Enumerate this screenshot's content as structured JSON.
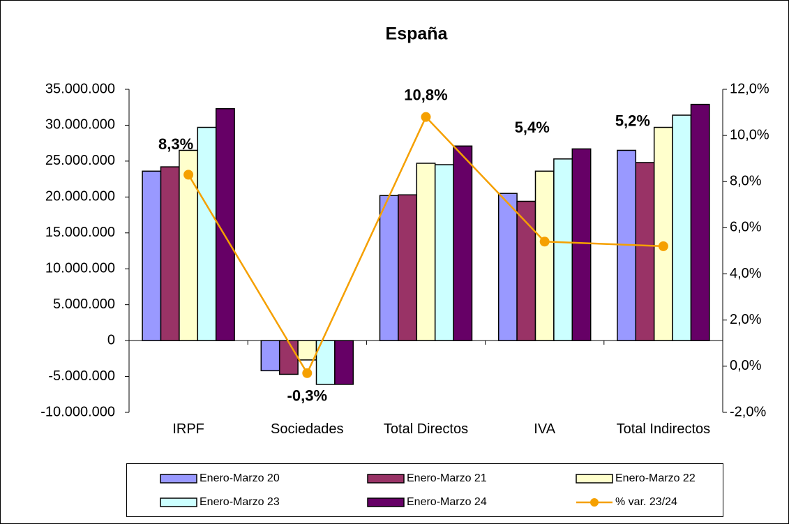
{
  "chart_data": {
    "type": "bar",
    "title": "España",
    "categories": [
      "IRPF",
      "Sociedades",
      "Total Directos",
      "IVA",
      "Total Indirectos"
    ],
    "series": [
      {
        "name": "Enero-Marzo 20",
        "color": "#9999ff",
        "values": [
          23600000,
          -4200000,
          20200000,
          20500000,
          26500000
        ]
      },
      {
        "name": "Enero-Marzo 21",
        "color": "#993366",
        "values": [
          24200000,
          -4700000,
          20300000,
          19400000,
          24800000
        ]
      },
      {
        "name": "Enero-Marzo 22",
        "color": "#ffffcc",
        "values": [
          26500000,
          -2700000,
          24700000,
          23600000,
          29700000
        ]
      },
      {
        "name": "Enero-Marzo 23",
        "color": "#ccffff",
        "values": [
          29700000,
          -6100000,
          24500000,
          25300000,
          31400000
        ]
      },
      {
        "name": "Enero-Marzo 24",
        "color": "#660066",
        "values": [
          32300000,
          -6100000,
          27100000,
          26700000,
          32900000
        ]
      },
      {
        "name": "% var. 23/24",
        "color": "#f5a000",
        "type": "line",
        "axis": "y2",
        "values": [
          8.3,
          -0.3,
          10.8,
          5.4,
          5.2
        ],
        "value_labels": [
          "8,3%",
          "-0,3%",
          "10,8%",
          "5,4%",
          "5,2%"
        ]
      }
    ],
    "ylim": [
      -10000000,
      35000000
    ],
    "yticks": [
      {
        "value": -10000000,
        "label": "-10.000.000"
      },
      {
        "value": -5000000,
        "label": "-5.000.000"
      },
      0,
      {
        "value": 5000000,
        "label": "5.000.000"
      },
      {
        "value": 10000000,
        "label": "10.000.000"
      },
      {
        "value": 15000000,
        "label": "15.000.000"
      },
      {
        "value": 20000000,
        "label": "20.000.000"
      },
      {
        "value": 25000000,
        "label": "25.000.000"
      },
      {
        "value": 30000000,
        "label": "30.000.000"
      },
      {
        "value": 35000000,
        "label": "35.000.000"
      }
    ],
    "y2lim": [
      -2,
      12
    ],
    "y2ticks": [
      {
        "value": -2,
        "label": "-2,0%"
      },
      {
        "value": 0,
        "label": "0,0%"
      },
      {
        "value": 2,
        "label": "2,0%"
      },
      {
        "value": 4,
        "label": "4,0%"
      },
      {
        "value": 6,
        "label": "6,0%"
      },
      {
        "value": 8,
        "label": "8,0%"
      },
      {
        "value": 10,
        "label": "10,0%"
      },
      {
        "value": 12,
        "label": "12,0%"
      }
    ],
    "grid": false
  }
}
